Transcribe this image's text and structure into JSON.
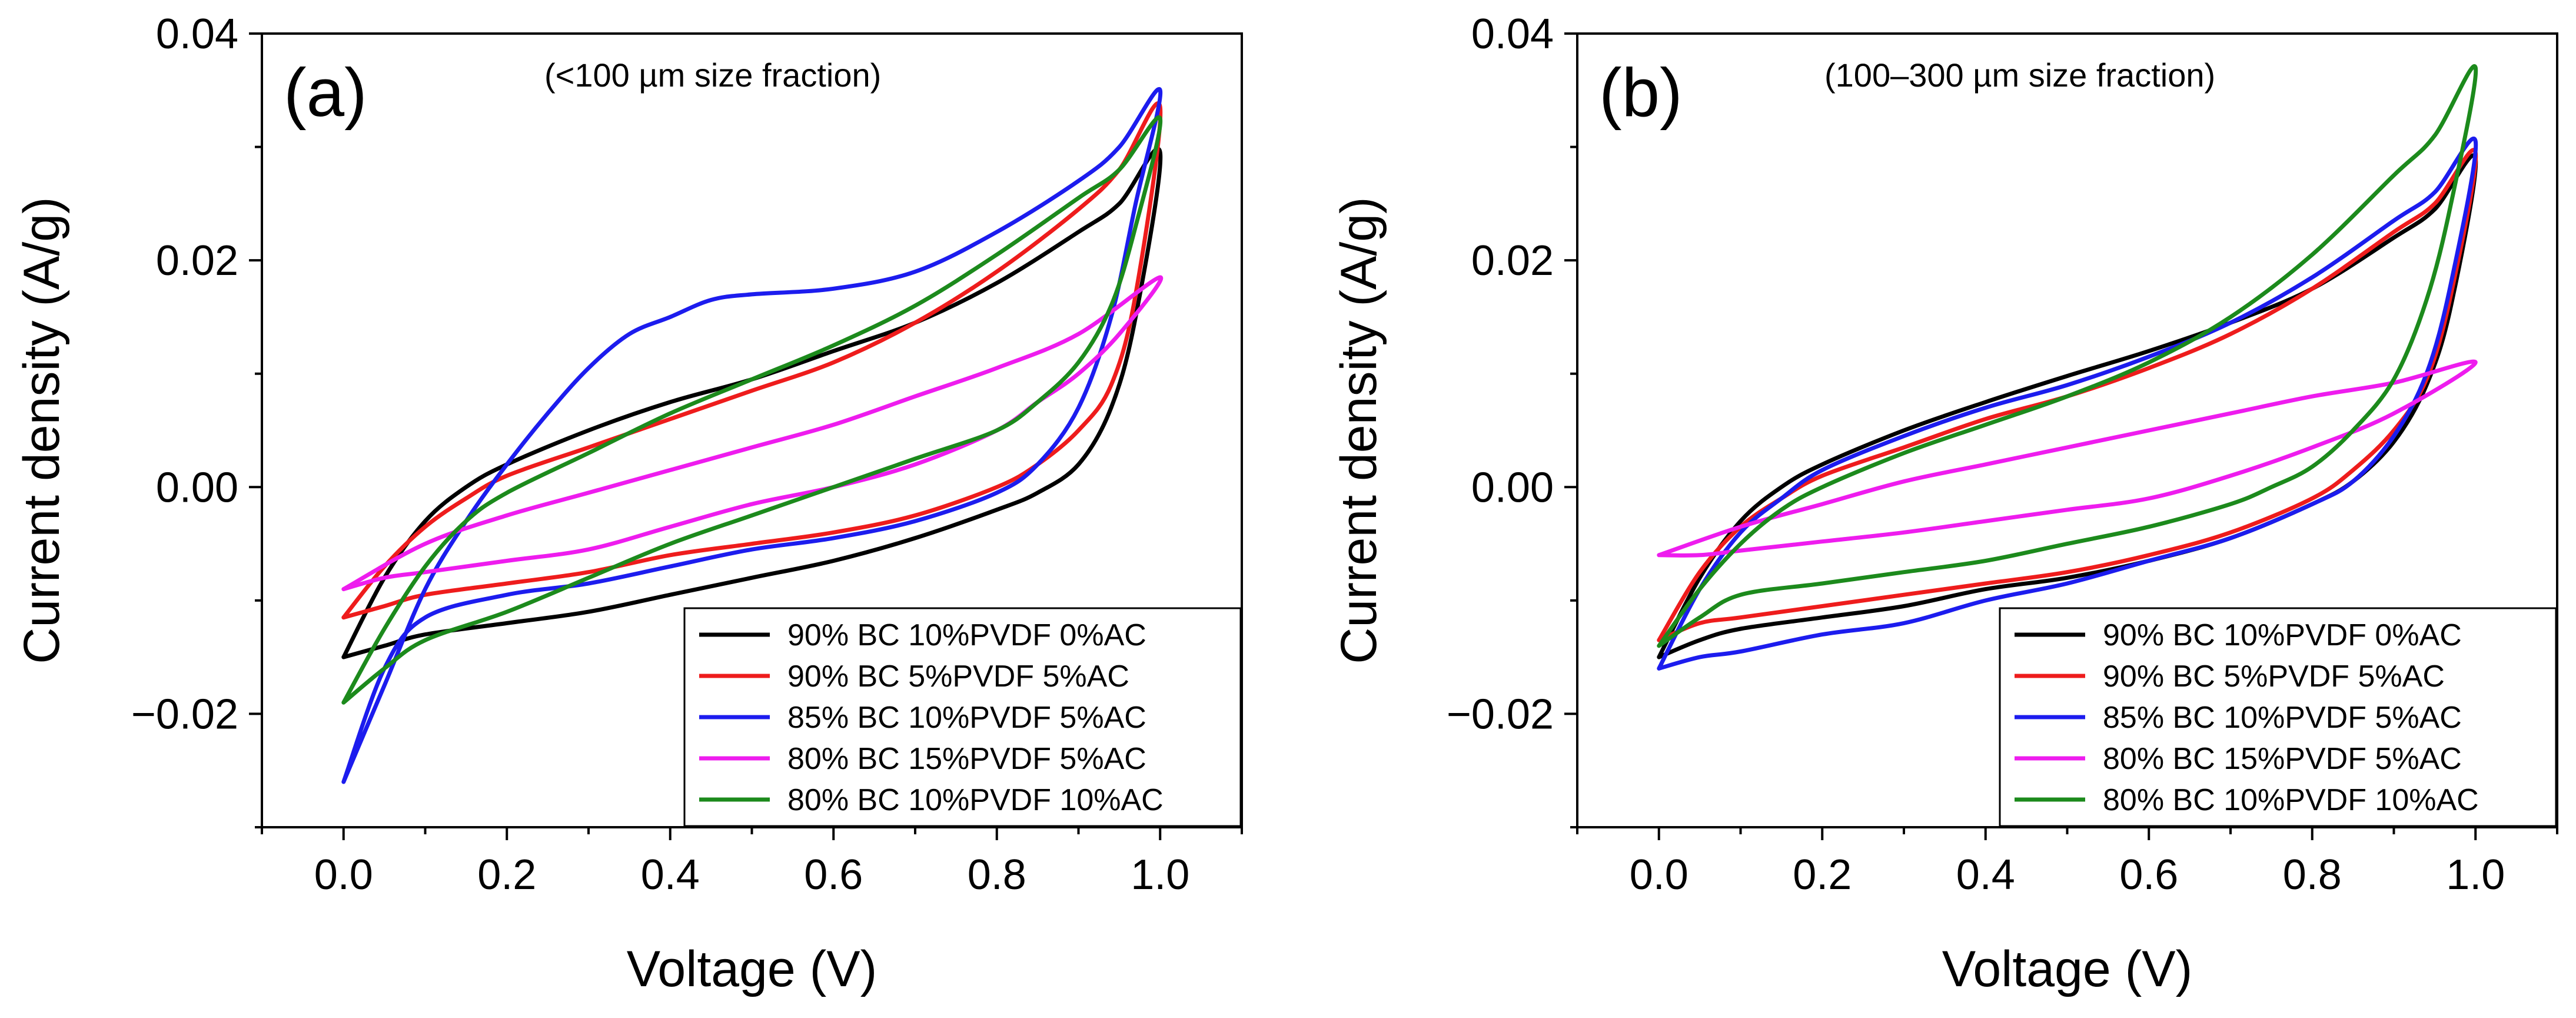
{
  "chart_data": [
    {
      "type": "line",
      "panel_label": "(a)",
      "subtitle": "(<100 µm size fraction)",
      "xlabel": "Voltage (V)",
      "ylabel": "Current density (A/g)",
      "xlim": [
        -0.1,
        1.1
      ],
      "ylim": [
        -0.03,
        0.04
      ],
      "xticks": [
        "0.0",
        "0.2",
        "0.4",
        "0.6",
        "0.8",
        "1.0"
      ],
      "yticks": [
        "-0.02",
        "0.00",
        "0.02",
        "0.04"
      ],
      "grid": false,
      "legend_position": "bottom-right",
      "series": [
        {
          "name": "90% BC 10%PVDF 0%AC",
          "color": "#000000",
          "x": [
            0.0,
            0.05,
            0.1,
            0.15,
            0.2,
            0.3,
            0.4,
            0.5,
            0.6,
            0.7,
            0.8,
            0.9,
            0.95,
            1.0,
            0.97,
            0.94,
            0.9,
            0.85,
            0.8,
            0.7,
            0.6,
            0.5,
            0.4,
            0.3,
            0.2,
            0.1,
            0.05,
            0.0
          ],
          "y": [
            -0.015,
            -0.008,
            -0.003,
            0.0,
            0.002,
            0.005,
            0.0075,
            0.0095,
            0.012,
            0.0145,
            0.018,
            0.0225,
            0.025,
            0.0295,
            0.015,
            0.007,
            0.002,
            -0.0005,
            -0.002,
            -0.0045,
            -0.0065,
            -0.008,
            -0.0095,
            -0.011,
            -0.012,
            -0.013,
            -0.014,
            -0.015
          ]
        },
        {
          "name": "90% BC 5%PVDF 5%AC",
          "color": "#ee1c1c",
          "x": [
            0.0,
            0.05,
            0.1,
            0.15,
            0.2,
            0.3,
            0.4,
            0.5,
            0.6,
            0.7,
            0.8,
            0.9,
            0.95,
            1.0,
            0.97,
            0.94,
            0.9,
            0.85,
            0.8,
            0.7,
            0.6,
            0.5,
            0.4,
            0.3,
            0.2,
            0.1,
            0.05,
            0.0
          ],
          "y": [
            -0.0115,
            -0.007,
            -0.0035,
            -0.001,
            0.001,
            0.0035,
            0.006,
            0.0085,
            0.011,
            0.0145,
            0.019,
            0.0245,
            0.028,
            0.0335,
            0.017,
            0.009,
            0.005,
            0.002,
            0.0,
            -0.0025,
            -0.004,
            -0.005,
            -0.006,
            -0.0075,
            -0.0085,
            -0.0095,
            -0.0105,
            -0.0115
          ]
        },
        {
          "name": "85% BC 10%PVDF 5%AC",
          "color": "#1c1cee",
          "x": [
            0.0,
            0.05,
            0.1,
            0.15,
            0.2,
            0.25,
            0.3,
            0.35,
            0.4,
            0.45,
            0.5,
            0.6,
            0.7,
            0.8,
            0.9,
            0.95,
            1.0,
            0.97,
            0.94,
            0.9,
            0.85,
            0.8,
            0.7,
            0.6,
            0.5,
            0.4,
            0.3,
            0.2,
            0.1,
            0.05,
            0.0
          ],
          "y": [
            -0.026,
            -0.0175,
            -0.009,
            -0.003,
            0.002,
            0.0065,
            0.0105,
            0.0135,
            0.015,
            0.0165,
            0.017,
            0.0175,
            0.019,
            0.0225,
            0.027,
            0.03,
            0.035,
            0.025,
            0.015,
            0.007,
            0.002,
            -0.0005,
            -0.003,
            -0.0045,
            -0.0055,
            -0.007,
            -0.0085,
            -0.0095,
            -0.0115,
            -0.016,
            -0.026
          ]
        },
        {
          "name": "80% BC 15%PVDF 5%AC",
          "color": "#ee1cee",
          "x": [
            0.0,
            0.1,
            0.2,
            0.3,
            0.4,
            0.5,
            0.6,
            0.7,
            0.8,
            0.9,
            1.0,
            0.95,
            0.9,
            0.85,
            0.8,
            0.7,
            0.6,
            0.5,
            0.4,
            0.3,
            0.2,
            0.1,
            0.05,
            0.0
          ],
          "y": [
            -0.009,
            -0.005,
            -0.0025,
            -0.0005,
            0.0015,
            0.0035,
            0.0055,
            0.008,
            0.0105,
            0.0135,
            0.0185,
            0.0135,
            0.01,
            0.0075,
            0.005,
            0.002,
            0.0,
            -0.0015,
            -0.0035,
            -0.0055,
            -0.0065,
            -0.0075,
            -0.008,
            -0.009
          ]
        },
        {
          "name": "80% BC 10%PVDF 10%AC",
          "color": "#1c8a1c",
          "x": [
            0.0,
            0.05,
            0.1,
            0.15,
            0.2,
            0.3,
            0.4,
            0.5,
            0.6,
            0.7,
            0.8,
            0.9,
            0.95,
            1.0,
            0.97,
            0.94,
            0.9,
            0.85,
            0.8,
            0.7,
            0.6,
            0.5,
            0.4,
            0.3,
            0.2,
            0.1,
            0.05,
            0.0
          ],
          "y": [
            -0.019,
            -0.0125,
            -0.007,
            -0.003,
            -0.0005,
            0.003,
            0.0065,
            0.0095,
            0.0125,
            0.016,
            0.0205,
            0.0255,
            0.028,
            0.0325,
            0.023,
            0.016,
            0.011,
            0.0075,
            0.005,
            0.0025,
            0.0,
            -0.0025,
            -0.005,
            -0.008,
            -0.011,
            -0.0135,
            -0.016,
            -0.019
          ]
        }
      ]
    },
    {
      "type": "line",
      "panel_label": "(b)",
      "subtitle": "(100–300 µm size fraction)",
      "xlabel": "Voltage (V)",
      "ylabel": "Current density (A/g)",
      "xlim": [
        -0.1,
        1.1
      ],
      "ylim": [
        -0.03,
        0.04
      ],
      "xticks": [
        "0.0",
        "0.2",
        "0.4",
        "0.6",
        "0.8",
        "1.0"
      ],
      "yticks": [
        "-0.02",
        "0.00",
        "0.02",
        "0.04"
      ],
      "grid": false,
      "legend_position": "bottom-right",
      "series": [
        {
          "name": "90% BC 10%PVDF 0%AC",
          "color": "#000000",
          "x": [
            0.0,
            0.05,
            0.1,
            0.15,
            0.2,
            0.3,
            0.4,
            0.5,
            0.6,
            0.7,
            0.8,
            0.9,
            0.95,
            1.0,
            0.97,
            0.94,
            0.9,
            0.85,
            0.8,
            0.7,
            0.6,
            0.5,
            0.4,
            0.3,
            0.2,
            0.1,
            0.05,
            0.0
          ],
          "y": [
            -0.015,
            -0.008,
            -0.003,
            0.0,
            0.002,
            0.005,
            0.0075,
            0.0098,
            0.012,
            0.0145,
            0.0175,
            0.022,
            0.0245,
            0.029,
            0.016,
            0.009,
            0.004,
            0.0005,
            -0.0015,
            -0.0045,
            -0.0065,
            -0.008,
            -0.009,
            -0.0105,
            -0.0115,
            -0.0125,
            -0.0135,
            -0.015
          ]
        },
        {
          "name": "90% BC 5%PVDF 5%AC",
          "color": "#ee1c1c",
          "x": [
            0.0,
            0.05,
            0.1,
            0.15,
            0.2,
            0.3,
            0.4,
            0.5,
            0.6,
            0.7,
            0.8,
            0.9,
            0.95,
            1.0,
            0.97,
            0.94,
            0.9,
            0.85,
            0.8,
            0.7,
            0.6,
            0.5,
            0.4,
            0.3,
            0.2,
            0.1,
            0.05,
            0.0
          ],
          "y": [
            -0.0135,
            -0.0075,
            -0.0035,
            -0.001,
            0.001,
            0.0035,
            0.006,
            0.008,
            0.0105,
            0.0135,
            0.0175,
            0.0225,
            0.025,
            0.0295,
            0.017,
            0.0095,
            0.005,
            0.0015,
            -0.001,
            -0.004,
            -0.006,
            -0.0075,
            -0.0085,
            -0.0095,
            -0.0105,
            -0.0115,
            -0.012,
            -0.0135
          ]
        },
        {
          "name": "85% BC 10%PVDF 5%AC",
          "color": "#1c1cee",
          "x": [
            0.0,
            0.05,
            0.1,
            0.15,
            0.2,
            0.3,
            0.4,
            0.5,
            0.6,
            0.7,
            0.8,
            0.9,
            0.95,
            1.0,
            0.97,
            0.94,
            0.9,
            0.85,
            0.8,
            0.7,
            0.6,
            0.5,
            0.4,
            0.3,
            0.2,
            0.1,
            0.05,
            0.0
          ],
          "y": [
            -0.016,
            -0.009,
            -0.004,
            -0.001,
            0.0015,
            0.0045,
            0.007,
            0.009,
            0.0115,
            0.0145,
            0.0185,
            0.0235,
            0.026,
            0.0305,
            0.018,
            0.01,
            0.0045,
            0.0005,
            -0.0015,
            -0.0045,
            -0.0065,
            -0.0085,
            -0.01,
            -0.012,
            -0.013,
            -0.0145,
            -0.015,
            -0.016
          ]
        },
        {
          "name": "80% BC 15%PVDF 5%AC",
          "color": "#ee1cee",
          "x": [
            0.0,
            0.1,
            0.2,
            0.3,
            0.4,
            0.5,
            0.6,
            0.7,
            0.8,
            0.9,
            1.0,
            0.9,
            0.8,
            0.7,
            0.6,
            0.5,
            0.4,
            0.3,
            0.2,
            0.1,
            0.05,
            0.0
          ],
          "y": [
            -0.006,
            -0.0035,
            -0.0015,
            0.0005,
            0.002,
            0.0035,
            0.005,
            0.0065,
            0.008,
            0.0092,
            0.011,
            0.0065,
            0.0035,
            0.001,
            -0.001,
            -0.002,
            -0.003,
            -0.004,
            -0.0048,
            -0.0056,
            -0.006,
            -0.006
          ]
        },
        {
          "name": "80% BC 10%PVDF 10%AC",
          "color": "#1c8a1c",
          "x": [
            0.0,
            0.05,
            0.1,
            0.15,
            0.2,
            0.3,
            0.4,
            0.5,
            0.6,
            0.7,
            0.8,
            0.9,
            0.95,
            1.0,
            0.97,
            0.94,
            0.9,
            0.85,
            0.8,
            0.75,
            0.7,
            0.6,
            0.5,
            0.4,
            0.3,
            0.2,
            0.1,
            0.05,
            0.0
          ],
          "y": [
            -0.014,
            -0.009,
            -0.005,
            -0.002,
            0.0,
            0.003,
            0.0055,
            0.008,
            0.011,
            0.015,
            0.0205,
            0.0275,
            0.031,
            0.037,
            0.025,
            0.0165,
            0.0095,
            0.005,
            0.0018,
            0.0,
            -0.0015,
            -0.0035,
            -0.005,
            -0.0065,
            -0.0075,
            -0.0085,
            -0.0095,
            -0.0115,
            -0.014
          ]
        }
      ]
    }
  ]
}
